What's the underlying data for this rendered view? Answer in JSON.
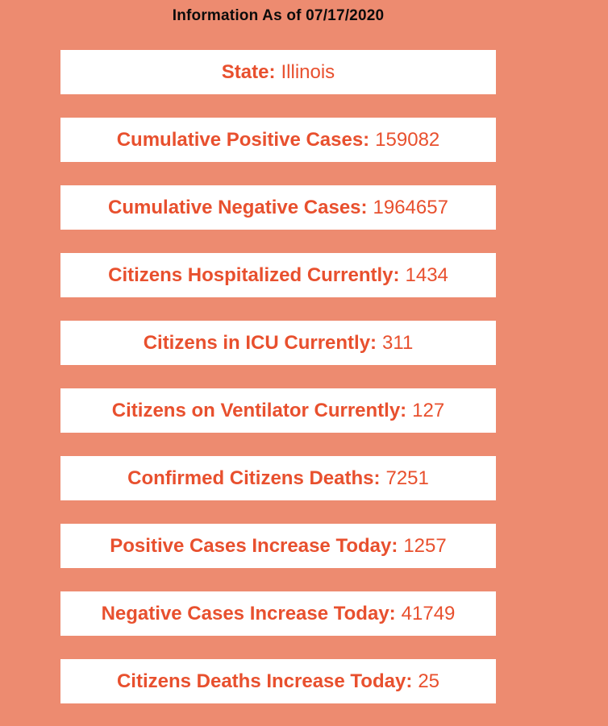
{
  "header": {
    "title": "Information As of 07/17/2020"
  },
  "colors": {
    "background": "#ED8B70",
    "card_bg": "#FFFFFF",
    "accent_text": "#E8502E",
    "title_text": "#0B0B0B"
  },
  "cards": [
    {
      "label": "State:",
      "value": "Illinois"
    },
    {
      "label": "Cumulative Positive Cases:",
      "value": "159082"
    },
    {
      "label": "Cumulative Negative Cases:",
      "value": "1964657"
    },
    {
      "label": "Citizens Hospitalized Currently:",
      "value": "1434"
    },
    {
      "label": "Citizens in ICU Currently:",
      "value": "311"
    },
    {
      "label": "Citizens on Ventilator Currently:",
      "value": "127"
    },
    {
      "label": "Confirmed Citizens Deaths:",
      "value": "7251"
    },
    {
      "label": "Positive Cases Increase Today:",
      "value": "1257"
    },
    {
      "label": "Negative Cases Increase Today:",
      "value": "41749"
    },
    {
      "label": "Citizens Deaths Increase Today:",
      "value": "25"
    }
  ]
}
